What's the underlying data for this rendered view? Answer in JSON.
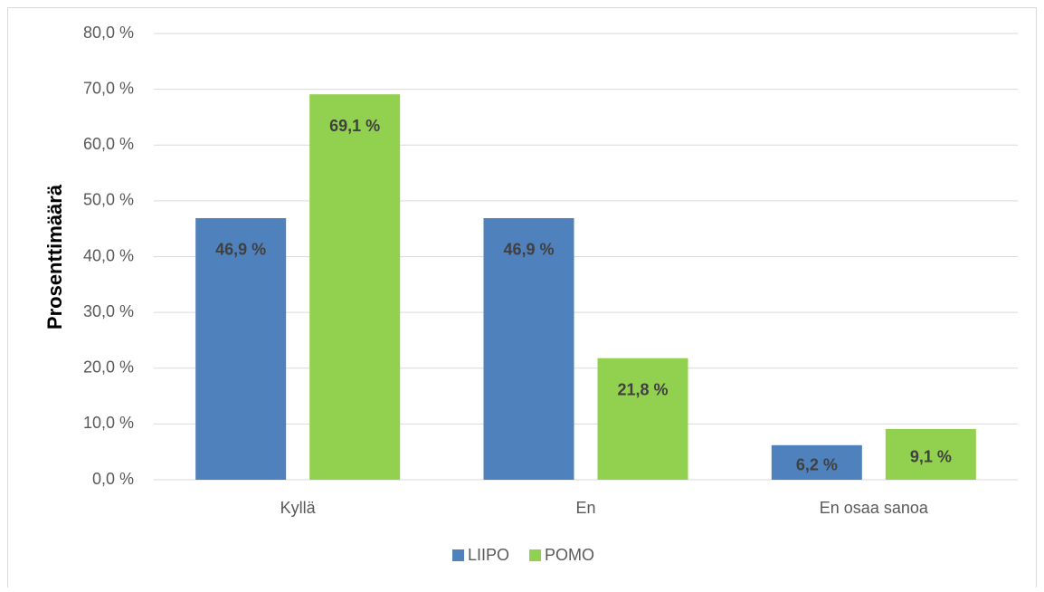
{
  "chart_data": {
    "type": "bar",
    "ylabel": "Prosenttimäärä",
    "categories": [
      "Kyllä",
      "En",
      "En osaa sanoa"
    ],
    "series": [
      {
        "name": "LIIPO",
        "color": "#4f81bd",
        "values": [
          46.9,
          46.9,
          6.2
        ],
        "value_labels": [
          "46,9 %",
          "46,9 %",
          "6,2 %"
        ]
      },
      {
        "name": "POMO",
        "color": "#92d050",
        "values": [
          69.1,
          21.8,
          9.1
        ],
        "value_labels": [
          "69,1 %",
          "21,8 %",
          "9,1 %"
        ]
      }
    ],
    "ylim": [
      0,
      80
    ],
    "yticks": [
      {
        "value": 0,
        "label": "0,0 %"
      },
      {
        "value": 10,
        "label": "10,0 %"
      },
      {
        "value": 20,
        "label": "20,0 %"
      },
      {
        "value": 30,
        "label": "30,0 %"
      },
      {
        "value": 40,
        "label": "40,0 %"
      },
      {
        "value": 50,
        "label": "50,0 %"
      },
      {
        "value": 60,
        "label": "60,0 %"
      },
      {
        "value": 70,
        "label": "70,0 %"
      },
      {
        "value": 80,
        "label": "80,0 %"
      }
    ],
    "grid": true,
    "legend": "bottom"
  }
}
